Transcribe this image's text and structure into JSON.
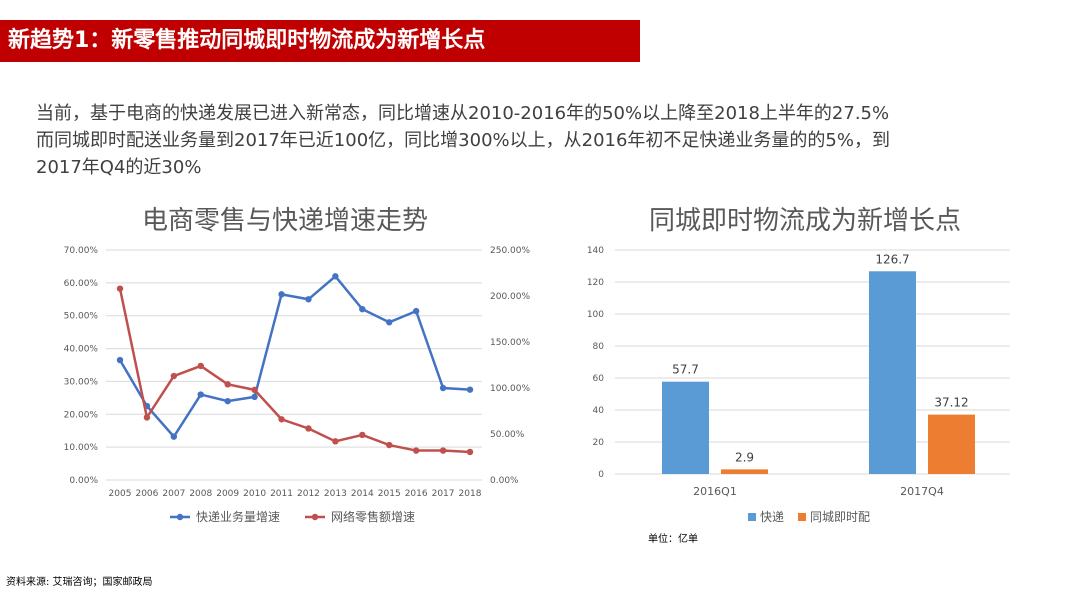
{
  "header": {
    "title": "新趋势1：新零售推动同城即时物流成为新增长点"
  },
  "intro": {
    "lines": [
      "当前，基于电商的快递发展已进入新常态，同比增速从2010-2016年的50%以上降至2018上半年的27.5%",
      "而同城即时配送业务量到2017年已近100亿，同比增300%以上，从2016年初不足快递业务量的的5%，到",
      "2017年Q4的近30%"
    ]
  },
  "colors": {
    "blue": "#4472c4",
    "red": "#c0504d",
    "bar_blue": "#5b9bd5",
    "bar_orange": "#ed7d31",
    "grid": "#d9d9d9"
  },
  "chart_data": [
    {
      "type": "line",
      "title": "电商零售与快递增速走势",
      "x": [
        "2005",
        "2006",
        "2007",
        "2008",
        "2009",
        "2010",
        "2011",
        "2012",
        "2013",
        "2014",
        "2015",
        "2016",
        "2017",
        "2018"
      ],
      "series": [
        {
          "name": "快递业务量增速",
          "axis": "left",
          "values": [
            36.5,
            22.5,
            13.2,
            26.0,
            24.0,
            25.3,
            56.5,
            55.0,
            62.0,
            52.0,
            48.0,
            51.4,
            28.0,
            27.5
          ]
        },
        {
          "name": "网络零售额增速",
          "axis": "right",
          "values": [
            208,
            68,
            113,
            124,
            104,
            98,
            66,
            56,
            42,
            49,
            38,
            32,
            32,
            30.5
          ]
        }
      ],
      "y_left": {
        "min": 0,
        "max": 70,
        "step": 10,
        "ticks": [
          "0.00%",
          "10.00%",
          "20.00%",
          "30.00%",
          "40.00%",
          "50.00%",
          "60.00%",
          "70.00%"
        ]
      },
      "y_right": {
        "min": 0,
        "max": 250,
        "step": 50,
        "ticks": [
          "0.00%",
          "50.00%",
          "100.00%",
          "150.00%",
          "200.00%",
          "250.00%"
        ]
      },
      "legend": [
        "快递业务量增速",
        "网络零售额增速"
      ]
    },
    {
      "type": "bar",
      "title": "同城即时物流成为新增长点",
      "categories": [
        "2016Q1",
        "2017Q4"
      ],
      "series": [
        {
          "name": "快递",
          "values": [
            57.7,
            126.7
          ],
          "labels": [
            "57.7",
            "126.7"
          ]
        },
        {
          "name": "同城即时配",
          "values": [
            2.9,
            37.12
          ],
          "labels": [
            "2.9",
            "37.12"
          ]
        }
      ],
      "ylim": [
        0,
        140
      ],
      "y_ticks": [
        "0",
        "20",
        "40",
        "60",
        "80",
        "100",
        "120",
        "140"
      ],
      "legend": [
        "快递",
        "同城即时配"
      ]
    }
  ],
  "unit_note": "单位：亿单",
  "source": "资料来源: 艾瑞咨询；国家邮政局"
}
